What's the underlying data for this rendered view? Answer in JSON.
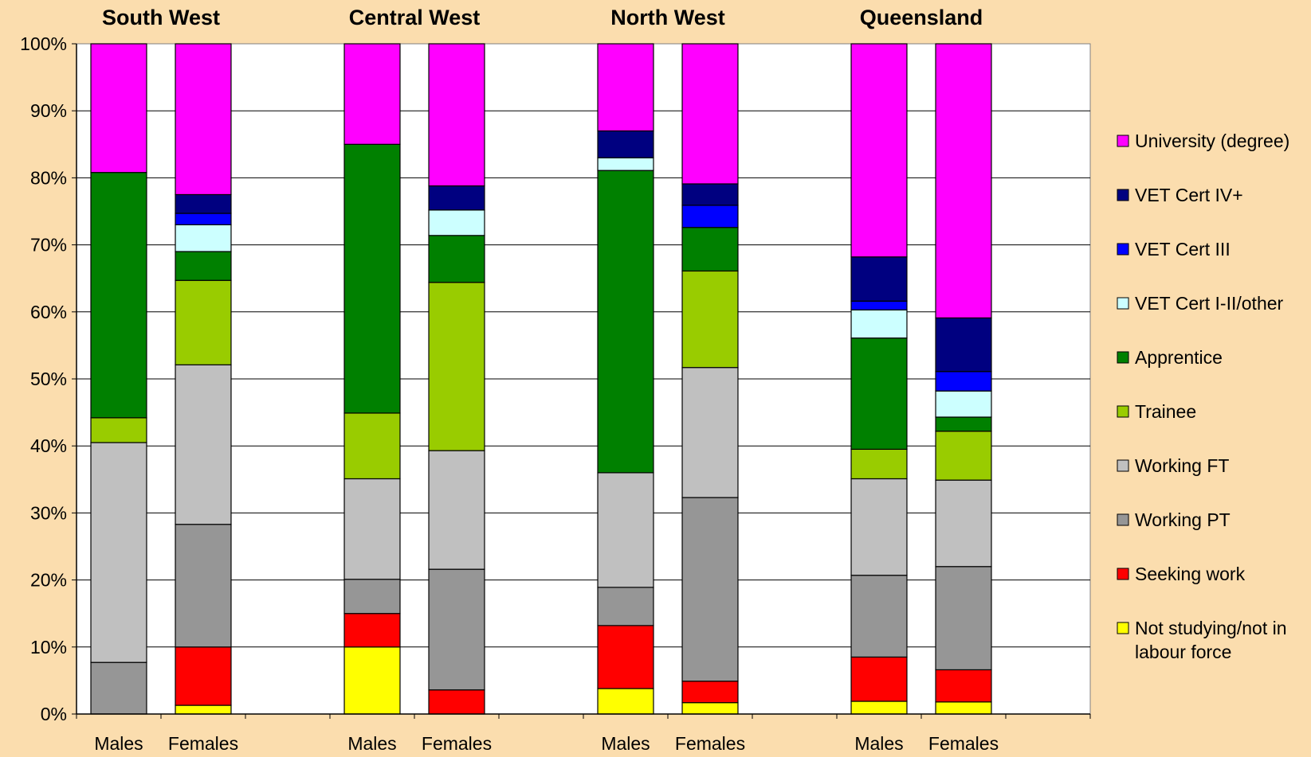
{
  "chart_data": {
    "type": "bar",
    "stacked": true,
    "ylim": [
      0,
      100
    ],
    "yticks": [
      "0%",
      "10%",
      "20%",
      "30%",
      "40%",
      "50%",
      "60%",
      "70%",
      "80%",
      "90%",
      "100%"
    ],
    "grid": true,
    "legend_position": "right",
    "groups": [
      {
        "title": "South West",
        "categories": [
          "Males",
          "Females"
        ]
      },
      {
        "title": "Central West",
        "categories": [
          "Males",
          "Females"
        ]
      },
      {
        "title": "North West",
        "categories": [
          "Males",
          "Females"
        ]
      },
      {
        "title": "Queensland",
        "categories": [
          "Males",
          "Females"
        ]
      }
    ],
    "series": [
      {
        "name": "Not studying/not in labour force",
        "color": "#FFFF00",
        "values": [
          0,
          1.3,
          10,
          0,
          3.8,
          1.7,
          1.9,
          1.8
        ]
      },
      {
        "name": "Seeking work",
        "color": "#FF0000",
        "values": [
          0,
          8.7,
          5,
          3.6,
          9.4,
          3.2,
          6.6,
          4.8
        ]
      },
      {
        "name": "Working PT",
        "color": "#969696",
        "values": [
          7.7,
          18.3,
          5.1,
          18,
          5.7,
          27.4,
          12.2,
          15.4
        ]
      },
      {
        "name": "Working FT",
        "color": "#C0C0C0",
        "values": [
          32.8,
          23.8,
          15,
          17.7,
          17.1,
          19.4,
          14.4,
          12.9
        ]
      },
      {
        "name": "Trainee",
        "color": "#99CC00",
        "values": [
          3.7,
          12.6,
          9.8,
          25.1,
          0,
          14.4,
          4.4,
          7.3
        ]
      },
      {
        "name": "Apprentice",
        "color": "#008000",
        "values": [
          36.6,
          4.3,
          40.1,
          7,
          45.1,
          6.5,
          16.6,
          2.1
        ]
      },
      {
        "name": "VET Cert I-II/other",
        "color": "#CCFFFF",
        "values": [
          0,
          4,
          0,
          3.8,
          1.9,
          0,
          4.2,
          3.9
        ]
      },
      {
        "name": "VET Cert III",
        "color": "#0000FF",
        "values": [
          0,
          1.7,
          0,
          0,
          0,
          3.3,
          1.3,
          2.9
        ]
      },
      {
        "name": "VET Cert IV+",
        "color": "#000080",
        "values": [
          0,
          2.8,
          0,
          3.6,
          4,
          3.2,
          6.6,
          8
        ]
      },
      {
        "name": "University (degree)",
        "color": "#FF00FF",
        "values": [
          19.2,
          22.5,
          15,
          21.2,
          13,
          20.9,
          31.8,
          40.9
        ]
      }
    ]
  }
}
